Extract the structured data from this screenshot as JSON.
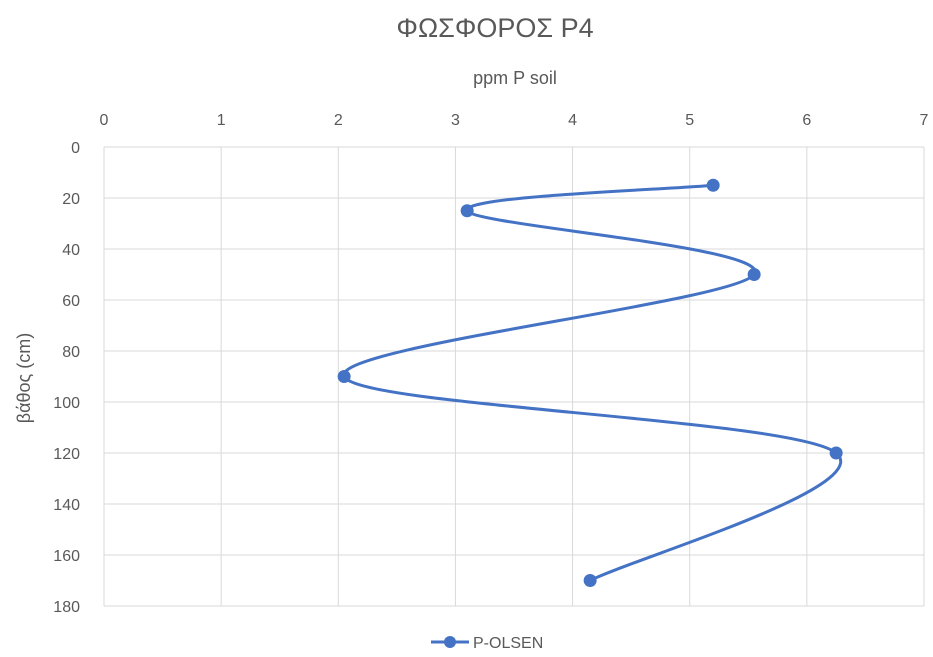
{
  "chart_data": {
    "type": "line",
    "title": "ΦΩΣΦΟΡΟΣ P4",
    "xlabel": "ppm P soil",
    "ylabel": "βάθος (cm)",
    "x_axis_position": "top",
    "y_axis_reversed": true,
    "xlim": [
      0,
      7
    ],
    "ylim": [
      0,
      180
    ],
    "x_ticks": [
      "0",
      "1",
      "2",
      "3",
      "4",
      "5",
      "6",
      "7"
    ],
    "y_ticks": [
      "0",
      "20",
      "40",
      "60",
      "80",
      "100",
      "120",
      "140",
      "160",
      "180"
    ],
    "grid": true,
    "smooth": true,
    "legend_position": "bottom",
    "series": [
      {
        "name": "P-OLSEN",
        "color": "#4472C4",
        "points": [
          {
            "x": 5.2,
            "y": 15
          },
          {
            "x": 3.1,
            "y": 25
          },
          {
            "x": 5.55,
            "y": 50
          },
          {
            "x": 2.05,
            "y": 90
          },
          {
            "x": 6.25,
            "y": 120
          },
          {
            "x": 4.15,
            "y": 170
          }
        ]
      }
    ]
  }
}
